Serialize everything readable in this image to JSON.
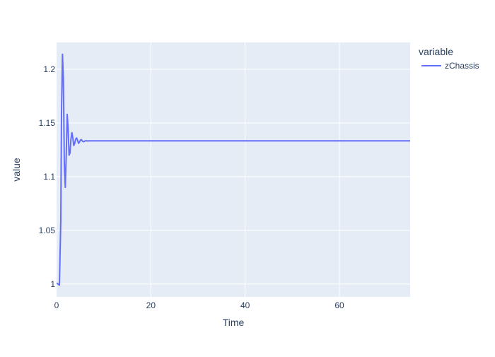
{
  "chart_data": {
    "type": "line",
    "xlabel": "Time",
    "ylabel": "value",
    "xlim": [
      0,
      75
    ],
    "ylim": [
      0.988,
      1.225
    ],
    "xticks": [
      0,
      20,
      40,
      60
    ],
    "yticks": [
      1,
      1.05,
      1.1,
      1.15,
      1.2
    ],
    "grid": true,
    "legend": {
      "title": "variable",
      "placement": "top-right outside"
    },
    "colors": {
      "plot_background": "#E5ECF6",
      "grid": "#ffffff",
      "text": "#2a3f5f",
      "series_line": "#636EFA"
    },
    "series": [
      {
        "name": "zChassis",
        "x": [
          0,
          0.3,
          0.6,
          0.9,
          1.05,
          1.25,
          1.45,
          1.65,
          1.85,
          2.05,
          2.25,
          2.45,
          2.65,
          2.85,
          3.05,
          3.25,
          3.45,
          3.65,
          3.85,
          4.05,
          4.25,
          4.45,
          4.65,
          4.85,
          5.05,
          5.25,
          5.5,
          5.75,
          6.0,
          6.25,
          6.5,
          7,
          7.5,
          8,
          10,
          20,
          30,
          40,
          50,
          60,
          70,
          75
        ],
        "y": [
          1.001,
          1.0,
          0.999,
          1.06,
          1.16,
          1.214,
          1.19,
          1.11,
          1.09,
          1.12,
          1.158,
          1.145,
          1.12,
          1.122,
          1.135,
          1.141,
          1.136,
          1.129,
          1.131,
          1.135,
          1.136,
          1.134,
          1.131,
          1.132,
          1.134,
          1.1345,
          1.133,
          1.1325,
          1.1332,
          1.1335,
          1.1332,
          1.1333,
          1.1333,
          1.1333,
          1.1333,
          1.1333,
          1.1333,
          1.1333,
          1.1333,
          1.1333,
          1.1333,
          1.1333
        ]
      }
    ]
  }
}
